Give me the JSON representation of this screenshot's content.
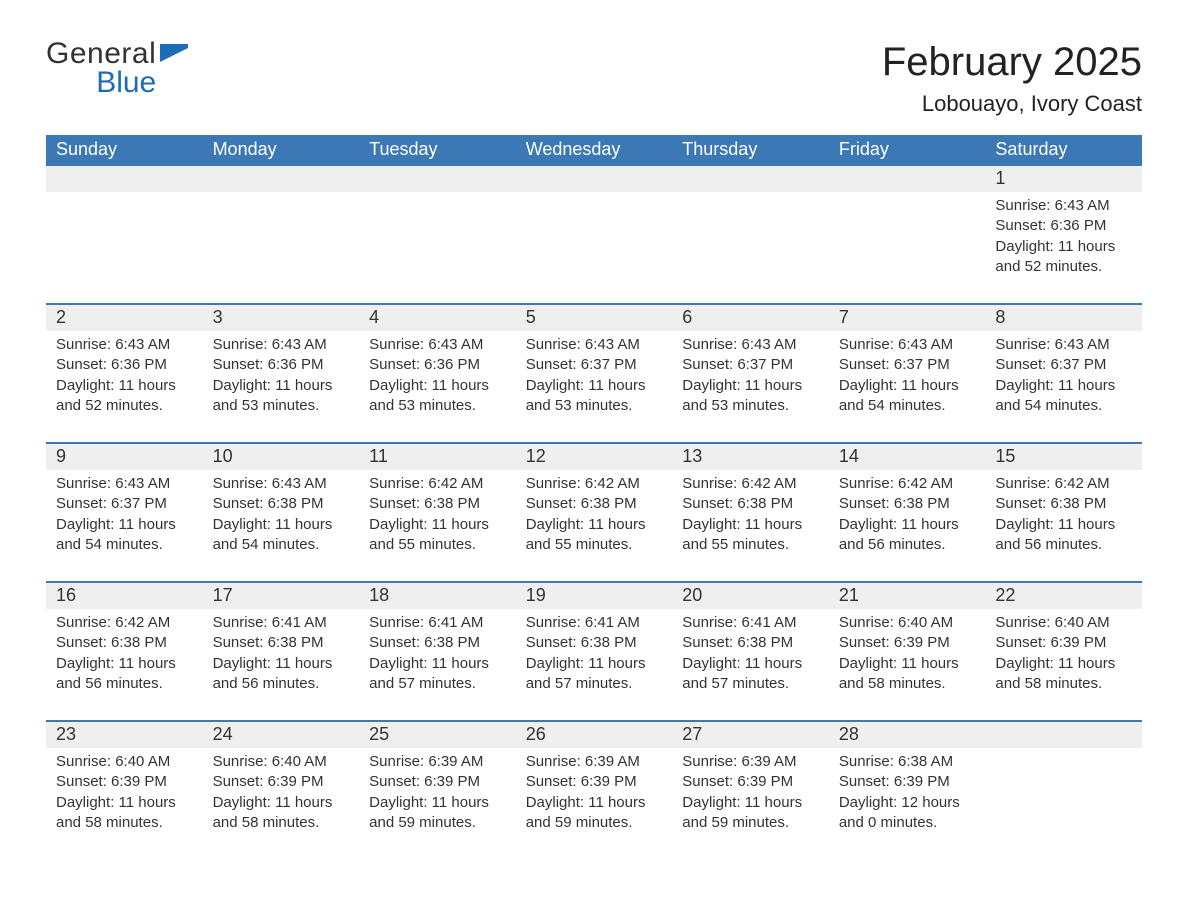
{
  "colors": {
    "header_bg": "#3b78b5",
    "header_text": "#ffffff",
    "row_band_bg": "#efefef",
    "row_divider": "#3b78b5",
    "page_bg": "#ffffff",
    "text": "#222222",
    "logo_blue": "#1e6bb8"
  },
  "typography": {
    "title_fontsize_pt": 30,
    "subtitle_fontsize_pt": 16,
    "weekday_fontsize_pt": 14,
    "daynum_fontsize_pt": 14,
    "body_fontsize_pt": 11,
    "font_family": "Arial"
  },
  "logo": {
    "line1": "General",
    "line2": "Blue",
    "icon_name": "flag-icon"
  },
  "header": {
    "title": "February 2025",
    "subtitle": "Lobouayo, Ivory Coast"
  },
  "calendar": {
    "weekdays": [
      "Sunday",
      "Monday",
      "Tuesday",
      "Wednesday",
      "Thursday",
      "Friday",
      "Saturday"
    ],
    "weeks": [
      {
        "days": [
          {
            "num": "",
            "sunrise": "",
            "sunset": "",
            "daylight": ""
          },
          {
            "num": "",
            "sunrise": "",
            "sunset": "",
            "daylight": ""
          },
          {
            "num": "",
            "sunrise": "",
            "sunset": "",
            "daylight": ""
          },
          {
            "num": "",
            "sunrise": "",
            "sunset": "",
            "daylight": ""
          },
          {
            "num": "",
            "sunrise": "",
            "sunset": "",
            "daylight": ""
          },
          {
            "num": "",
            "sunrise": "",
            "sunset": "",
            "daylight": ""
          },
          {
            "num": "1",
            "sunrise": "Sunrise: 6:43 AM",
            "sunset": "Sunset: 6:36 PM",
            "daylight": "Daylight: 11 hours and 52 minutes."
          }
        ]
      },
      {
        "days": [
          {
            "num": "2",
            "sunrise": "Sunrise: 6:43 AM",
            "sunset": "Sunset: 6:36 PM",
            "daylight": "Daylight: 11 hours and 52 minutes."
          },
          {
            "num": "3",
            "sunrise": "Sunrise: 6:43 AM",
            "sunset": "Sunset: 6:36 PM",
            "daylight": "Daylight: 11 hours and 53 minutes."
          },
          {
            "num": "4",
            "sunrise": "Sunrise: 6:43 AM",
            "sunset": "Sunset: 6:36 PM",
            "daylight": "Daylight: 11 hours and 53 minutes."
          },
          {
            "num": "5",
            "sunrise": "Sunrise: 6:43 AM",
            "sunset": "Sunset: 6:37 PM",
            "daylight": "Daylight: 11 hours and 53 minutes."
          },
          {
            "num": "6",
            "sunrise": "Sunrise: 6:43 AM",
            "sunset": "Sunset: 6:37 PM",
            "daylight": "Daylight: 11 hours and 53 minutes."
          },
          {
            "num": "7",
            "sunrise": "Sunrise: 6:43 AM",
            "sunset": "Sunset: 6:37 PM",
            "daylight": "Daylight: 11 hours and 54 minutes."
          },
          {
            "num": "8",
            "sunrise": "Sunrise: 6:43 AM",
            "sunset": "Sunset: 6:37 PM",
            "daylight": "Daylight: 11 hours and 54 minutes."
          }
        ]
      },
      {
        "days": [
          {
            "num": "9",
            "sunrise": "Sunrise: 6:43 AM",
            "sunset": "Sunset: 6:37 PM",
            "daylight": "Daylight: 11 hours and 54 minutes."
          },
          {
            "num": "10",
            "sunrise": "Sunrise: 6:43 AM",
            "sunset": "Sunset: 6:38 PM",
            "daylight": "Daylight: 11 hours and 54 minutes."
          },
          {
            "num": "11",
            "sunrise": "Sunrise: 6:42 AM",
            "sunset": "Sunset: 6:38 PM",
            "daylight": "Daylight: 11 hours and 55 minutes."
          },
          {
            "num": "12",
            "sunrise": "Sunrise: 6:42 AM",
            "sunset": "Sunset: 6:38 PM",
            "daylight": "Daylight: 11 hours and 55 minutes."
          },
          {
            "num": "13",
            "sunrise": "Sunrise: 6:42 AM",
            "sunset": "Sunset: 6:38 PM",
            "daylight": "Daylight: 11 hours and 55 minutes."
          },
          {
            "num": "14",
            "sunrise": "Sunrise: 6:42 AM",
            "sunset": "Sunset: 6:38 PM",
            "daylight": "Daylight: 11 hours and 56 minutes."
          },
          {
            "num": "15",
            "sunrise": "Sunrise: 6:42 AM",
            "sunset": "Sunset: 6:38 PM",
            "daylight": "Daylight: 11 hours and 56 minutes."
          }
        ]
      },
      {
        "days": [
          {
            "num": "16",
            "sunrise": "Sunrise: 6:42 AM",
            "sunset": "Sunset: 6:38 PM",
            "daylight": "Daylight: 11 hours and 56 minutes."
          },
          {
            "num": "17",
            "sunrise": "Sunrise: 6:41 AM",
            "sunset": "Sunset: 6:38 PM",
            "daylight": "Daylight: 11 hours and 56 minutes."
          },
          {
            "num": "18",
            "sunrise": "Sunrise: 6:41 AM",
            "sunset": "Sunset: 6:38 PM",
            "daylight": "Daylight: 11 hours and 57 minutes."
          },
          {
            "num": "19",
            "sunrise": "Sunrise: 6:41 AM",
            "sunset": "Sunset: 6:38 PM",
            "daylight": "Daylight: 11 hours and 57 minutes."
          },
          {
            "num": "20",
            "sunrise": "Sunrise: 6:41 AM",
            "sunset": "Sunset: 6:38 PM",
            "daylight": "Daylight: 11 hours and 57 minutes."
          },
          {
            "num": "21",
            "sunrise": "Sunrise: 6:40 AM",
            "sunset": "Sunset: 6:39 PM",
            "daylight": "Daylight: 11 hours and 58 minutes."
          },
          {
            "num": "22",
            "sunrise": "Sunrise: 6:40 AM",
            "sunset": "Sunset: 6:39 PM",
            "daylight": "Daylight: 11 hours and 58 minutes."
          }
        ]
      },
      {
        "days": [
          {
            "num": "23",
            "sunrise": "Sunrise: 6:40 AM",
            "sunset": "Sunset: 6:39 PM",
            "daylight": "Daylight: 11 hours and 58 minutes."
          },
          {
            "num": "24",
            "sunrise": "Sunrise: 6:40 AM",
            "sunset": "Sunset: 6:39 PM",
            "daylight": "Daylight: 11 hours and 58 minutes."
          },
          {
            "num": "25",
            "sunrise": "Sunrise: 6:39 AM",
            "sunset": "Sunset: 6:39 PM",
            "daylight": "Daylight: 11 hours and 59 minutes."
          },
          {
            "num": "26",
            "sunrise": "Sunrise: 6:39 AM",
            "sunset": "Sunset: 6:39 PM",
            "daylight": "Daylight: 11 hours and 59 minutes."
          },
          {
            "num": "27",
            "sunrise": "Sunrise: 6:39 AM",
            "sunset": "Sunset: 6:39 PM",
            "daylight": "Daylight: 11 hours and 59 minutes."
          },
          {
            "num": "28",
            "sunrise": "Sunrise: 6:38 AM",
            "sunset": "Sunset: 6:39 PM",
            "daylight": "Daylight: 12 hours and 0 minutes."
          },
          {
            "num": "",
            "sunrise": "",
            "sunset": "",
            "daylight": ""
          }
        ]
      }
    ]
  }
}
